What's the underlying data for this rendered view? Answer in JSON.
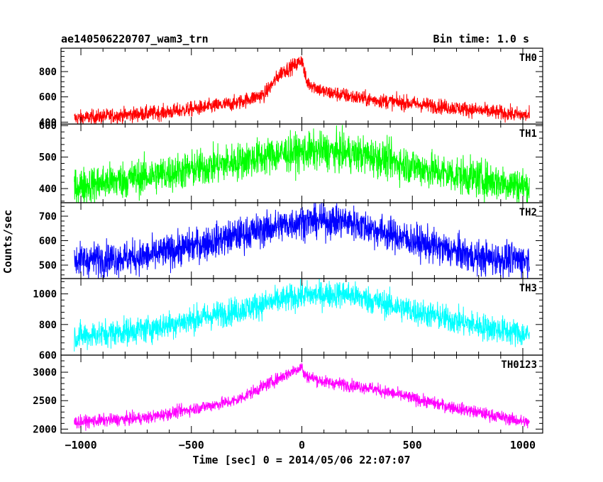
{
  "header": {
    "obs_name": "ae140506220707_wam3_trn",
    "bin_time": "Bin time: 1.0 s"
  },
  "chart_data": {
    "type": "line",
    "title": "ae140506220707_wam3_trn",
    "subtitle": "Bin time: 1.0 s",
    "xlabel": "Time [sec] 0 = 2014/05/06 22:07:07",
    "ylabel": "Counts/sec",
    "xlim": [
      -1090,
      1090
    ],
    "x_ticks": [
      -1000,
      -500,
      0,
      500,
      1000
    ],
    "x_tick_labels": [
      "−1000",
      "−500",
      "0",
      "500",
      "1000"
    ],
    "x_data_range": [
      -1030,
      1030
    ],
    "bin_seconds": 1.0,
    "grid": false,
    "panels": [
      {
        "name": "TH0",
        "color": "#ff0000",
        "ylim": [
          385,
          985
        ],
        "y_ticks": [
          400,
          600,
          800
        ],
        "noise": 30,
        "profile": [
          [
            -1030,
            430
          ],
          [
            -600,
            480
          ],
          [
            -300,
            550
          ],
          [
            -170,
            620
          ],
          [
            -90,
            800
          ],
          [
            -20,
            860
          ],
          [
            0,
            900
          ],
          [
            20,
            720
          ],
          [
            100,
            640
          ],
          [
            300,
            580
          ],
          [
            600,
            530
          ],
          [
            1030,
            450
          ]
        ]
      },
      {
        "name": "TH1",
        "color": "#00ff00",
        "ylim": [
          355,
          605
        ],
        "y_ticks": [
          400,
          500,
          600
        ],
        "noise": 30,
        "profile": [
          [
            -1030,
            405
          ],
          [
            -500,
            460
          ],
          [
            -100,
            510
          ],
          [
            100,
            520
          ],
          [
            300,
            505
          ],
          [
            600,
            455
          ],
          [
            1030,
            405
          ]
        ]
      },
      {
        "name": "TH2",
        "color": "#0000ff",
        "ylim": [
          445,
          755
        ],
        "y_ticks": [
          500,
          600,
          700
        ],
        "noise": 35,
        "profile": [
          [
            -1030,
            520
          ],
          [
            -700,
            535
          ],
          [
            -300,
            620
          ],
          [
            0,
            680
          ],
          [
            200,
            680
          ],
          [
            500,
            600
          ],
          [
            800,
            530
          ],
          [
            1030,
            520
          ]
        ]
      },
      {
        "name": "TH3",
        "color": "#00ffff",
        "ylim": [
          600,
          1100
        ],
        "y_ticks": [
          600,
          800,
          1000
        ],
        "noise": 45,
        "profile": [
          [
            -1030,
            720
          ],
          [
            -700,
            770
          ],
          [
            -300,
            890
          ],
          [
            0,
            990
          ],
          [
            200,
            1000
          ],
          [
            500,
            890
          ],
          [
            800,
            790
          ],
          [
            1030,
            730
          ]
        ]
      },
      {
        "name": "TH0123",
        "color": "#ff00ff",
        "ylim": [
          1930,
          3300
        ],
        "y_ticks": [
          2000,
          2500,
          3000
        ],
        "y_tick_labels": [
          "2000",
          "2500",
          "3000"
        ],
        "noise": 55,
        "profile": [
          [
            -1030,
            2120
          ],
          [
            -700,
            2200
          ],
          [
            -300,
            2500
          ],
          [
            -150,
            2800
          ],
          [
            -50,
            3000
          ],
          [
            0,
            3100
          ],
          [
            10,
            2950
          ],
          [
            100,
            2830
          ],
          [
            300,
            2730
          ],
          [
            600,
            2450
          ],
          [
            1030,
            2110
          ]
        ]
      }
    ]
  }
}
